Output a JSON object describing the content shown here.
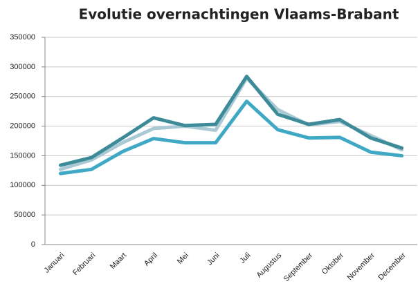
{
  "chart_data": {
    "type": "line",
    "title": "Evolutie overnachtingen Vlaams-Brabant",
    "categories": [
      "Januari",
      "Februari",
      "Maart",
      "April",
      "Mei",
      "Juni",
      "Juli",
      "Augustus",
      "September",
      "Oktober",
      "November",
      "December"
    ],
    "series": [
      {
        "color": "#a9c9d4",
        "values": [
          127000,
          143000,
          172000,
          196000,
          200000,
          193000,
          281000,
          228000,
          202000,
          208000,
          184000,
          160000
        ]
      },
      {
        "color": "#3fa9c5",
        "values": [
          120000,
          127000,
          157000,
          179000,
          172000,
          172000,
          242000,
          194000,
          180000,
          181000,
          156000,
          150000
        ]
      },
      {
        "color": "#3d8b99",
        "values": [
          134000,
          147000,
          180000,
          214000,
          201000,
          203000,
          284000,
          220000,
          203000,
          211000,
          180000,
          163000
        ]
      }
    ],
    "ylim": [
      0,
      350000
    ],
    "yticks": [
      0,
      50000,
      100000,
      150000,
      200000,
      250000,
      300000,
      350000
    ],
    "grid": true
  }
}
